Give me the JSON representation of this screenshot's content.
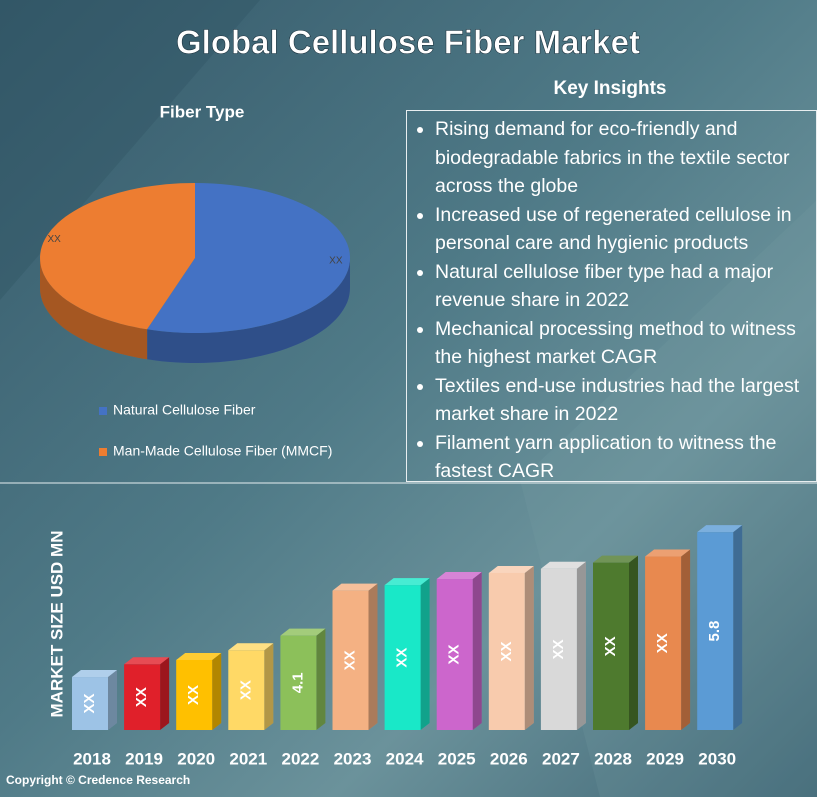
{
  "title": "Global Cellulose Fiber Market",
  "insights": {
    "title": "Key Insights",
    "items": [
      "Rising demand for eco-friendly and biodegradable fabrics in the textile sector across the globe",
      "Increased use of regenerated cellulose in personal care and hygienic products",
      "Natural cellulose fiber type had a major revenue share in 2022",
      "Mechanical processing method to witness the highest market CAGR",
      "Textiles end-use industries had the largest market share in 2022",
      "Filament yarn application to witness the fastest CAGR"
    ]
  },
  "copyright": "Copyright © Credence Research",
  "chart_data": [
    {
      "type": "pie",
      "title": "Fiber Type",
      "categories": [
        "Natural Cellulose Fiber",
        "Man-Made Cellulose Fiber (MMCF)"
      ],
      "values": [
        55,
        45
      ],
      "value_labels": [
        "XX",
        "XX"
      ],
      "colors": [
        "#4472c4",
        "#ed7d31"
      ]
    },
    {
      "type": "bar",
      "ylabel": "MARKET SIZE USD MN",
      "categories": [
        "2018",
        "2019",
        "2020",
        "2021",
        "2022",
        "2023",
        "2024",
        "2025",
        "2026",
        "2027",
        "2028",
        "2029",
        "2030"
      ],
      "values": [
        3.42,
        3.63,
        3.7,
        3.86,
        4.1,
        4.84,
        4.93,
        5.03,
        5.13,
        5.2,
        5.3,
        5.4,
        5.8
      ],
      "value_labels": [
        "XX",
        "XX",
        "XX",
        "XX",
        "4.1",
        "XX",
        "XX",
        "XX",
        "XX",
        "XX",
        "XX",
        "XX",
        "5.8"
      ],
      "colors": [
        "#9dc3e6",
        "#e0202a",
        "#ffc000",
        "#ffd966",
        "#8cc05a",
        "#f4b183",
        "#19e8c8",
        "#cc66cc",
        "#f8cbad",
        "#d9d9d9",
        "#4e7a2e",
        "#e8894f",
        "#5b9bd5"
      ],
      "ylim": [
        2.55,
        6.0
      ]
    }
  ]
}
